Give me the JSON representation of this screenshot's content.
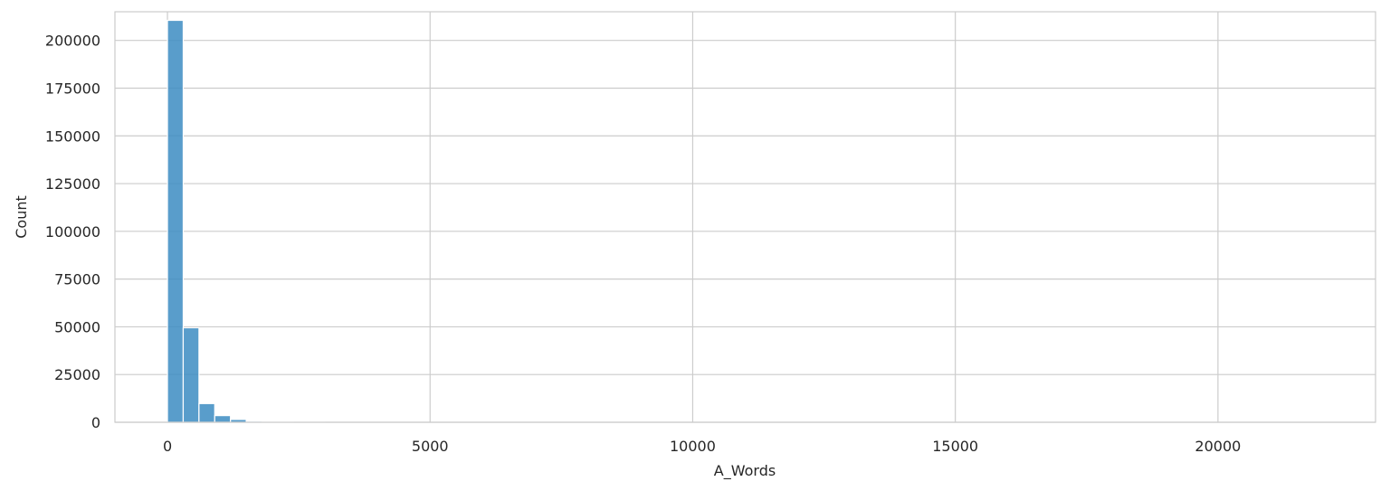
{
  "chart_data": {
    "type": "bar",
    "subtype": "histogram",
    "title": "",
    "xlabel": "A_Words",
    "ylabel": "Count",
    "xlim": [
      -1000,
      23000
    ],
    "ylim": [
      0,
      215000
    ],
    "xticks": [
      0,
      5000,
      10000,
      15000,
      20000
    ],
    "yticks": [
      0,
      25000,
      50000,
      75000,
      100000,
      125000,
      150000,
      175000,
      200000
    ],
    "grid": true,
    "bar_color": "#3c8cc2",
    "bins": [
      {
        "x0": 0,
        "x1": 300,
        "count": 210500
      },
      {
        "x0": 300,
        "x1": 600,
        "count": 49500
      },
      {
        "x0": 600,
        "x1": 900,
        "count": 9800
      },
      {
        "x0": 900,
        "x1": 1200,
        "count": 3500
      },
      {
        "x0": 1200,
        "x1": 1500,
        "count": 1500
      },
      {
        "x0": 1500,
        "x1": 1800,
        "count": 600
      },
      {
        "x0": 1800,
        "x1": 2100,
        "count": 300
      },
      {
        "x0": 2100,
        "x1": 2400,
        "count": 150
      },
      {
        "x0": 2400,
        "x1": 2700,
        "count": 80
      },
      {
        "x0": 2700,
        "x1": 3000,
        "count": 40
      }
    ]
  }
}
